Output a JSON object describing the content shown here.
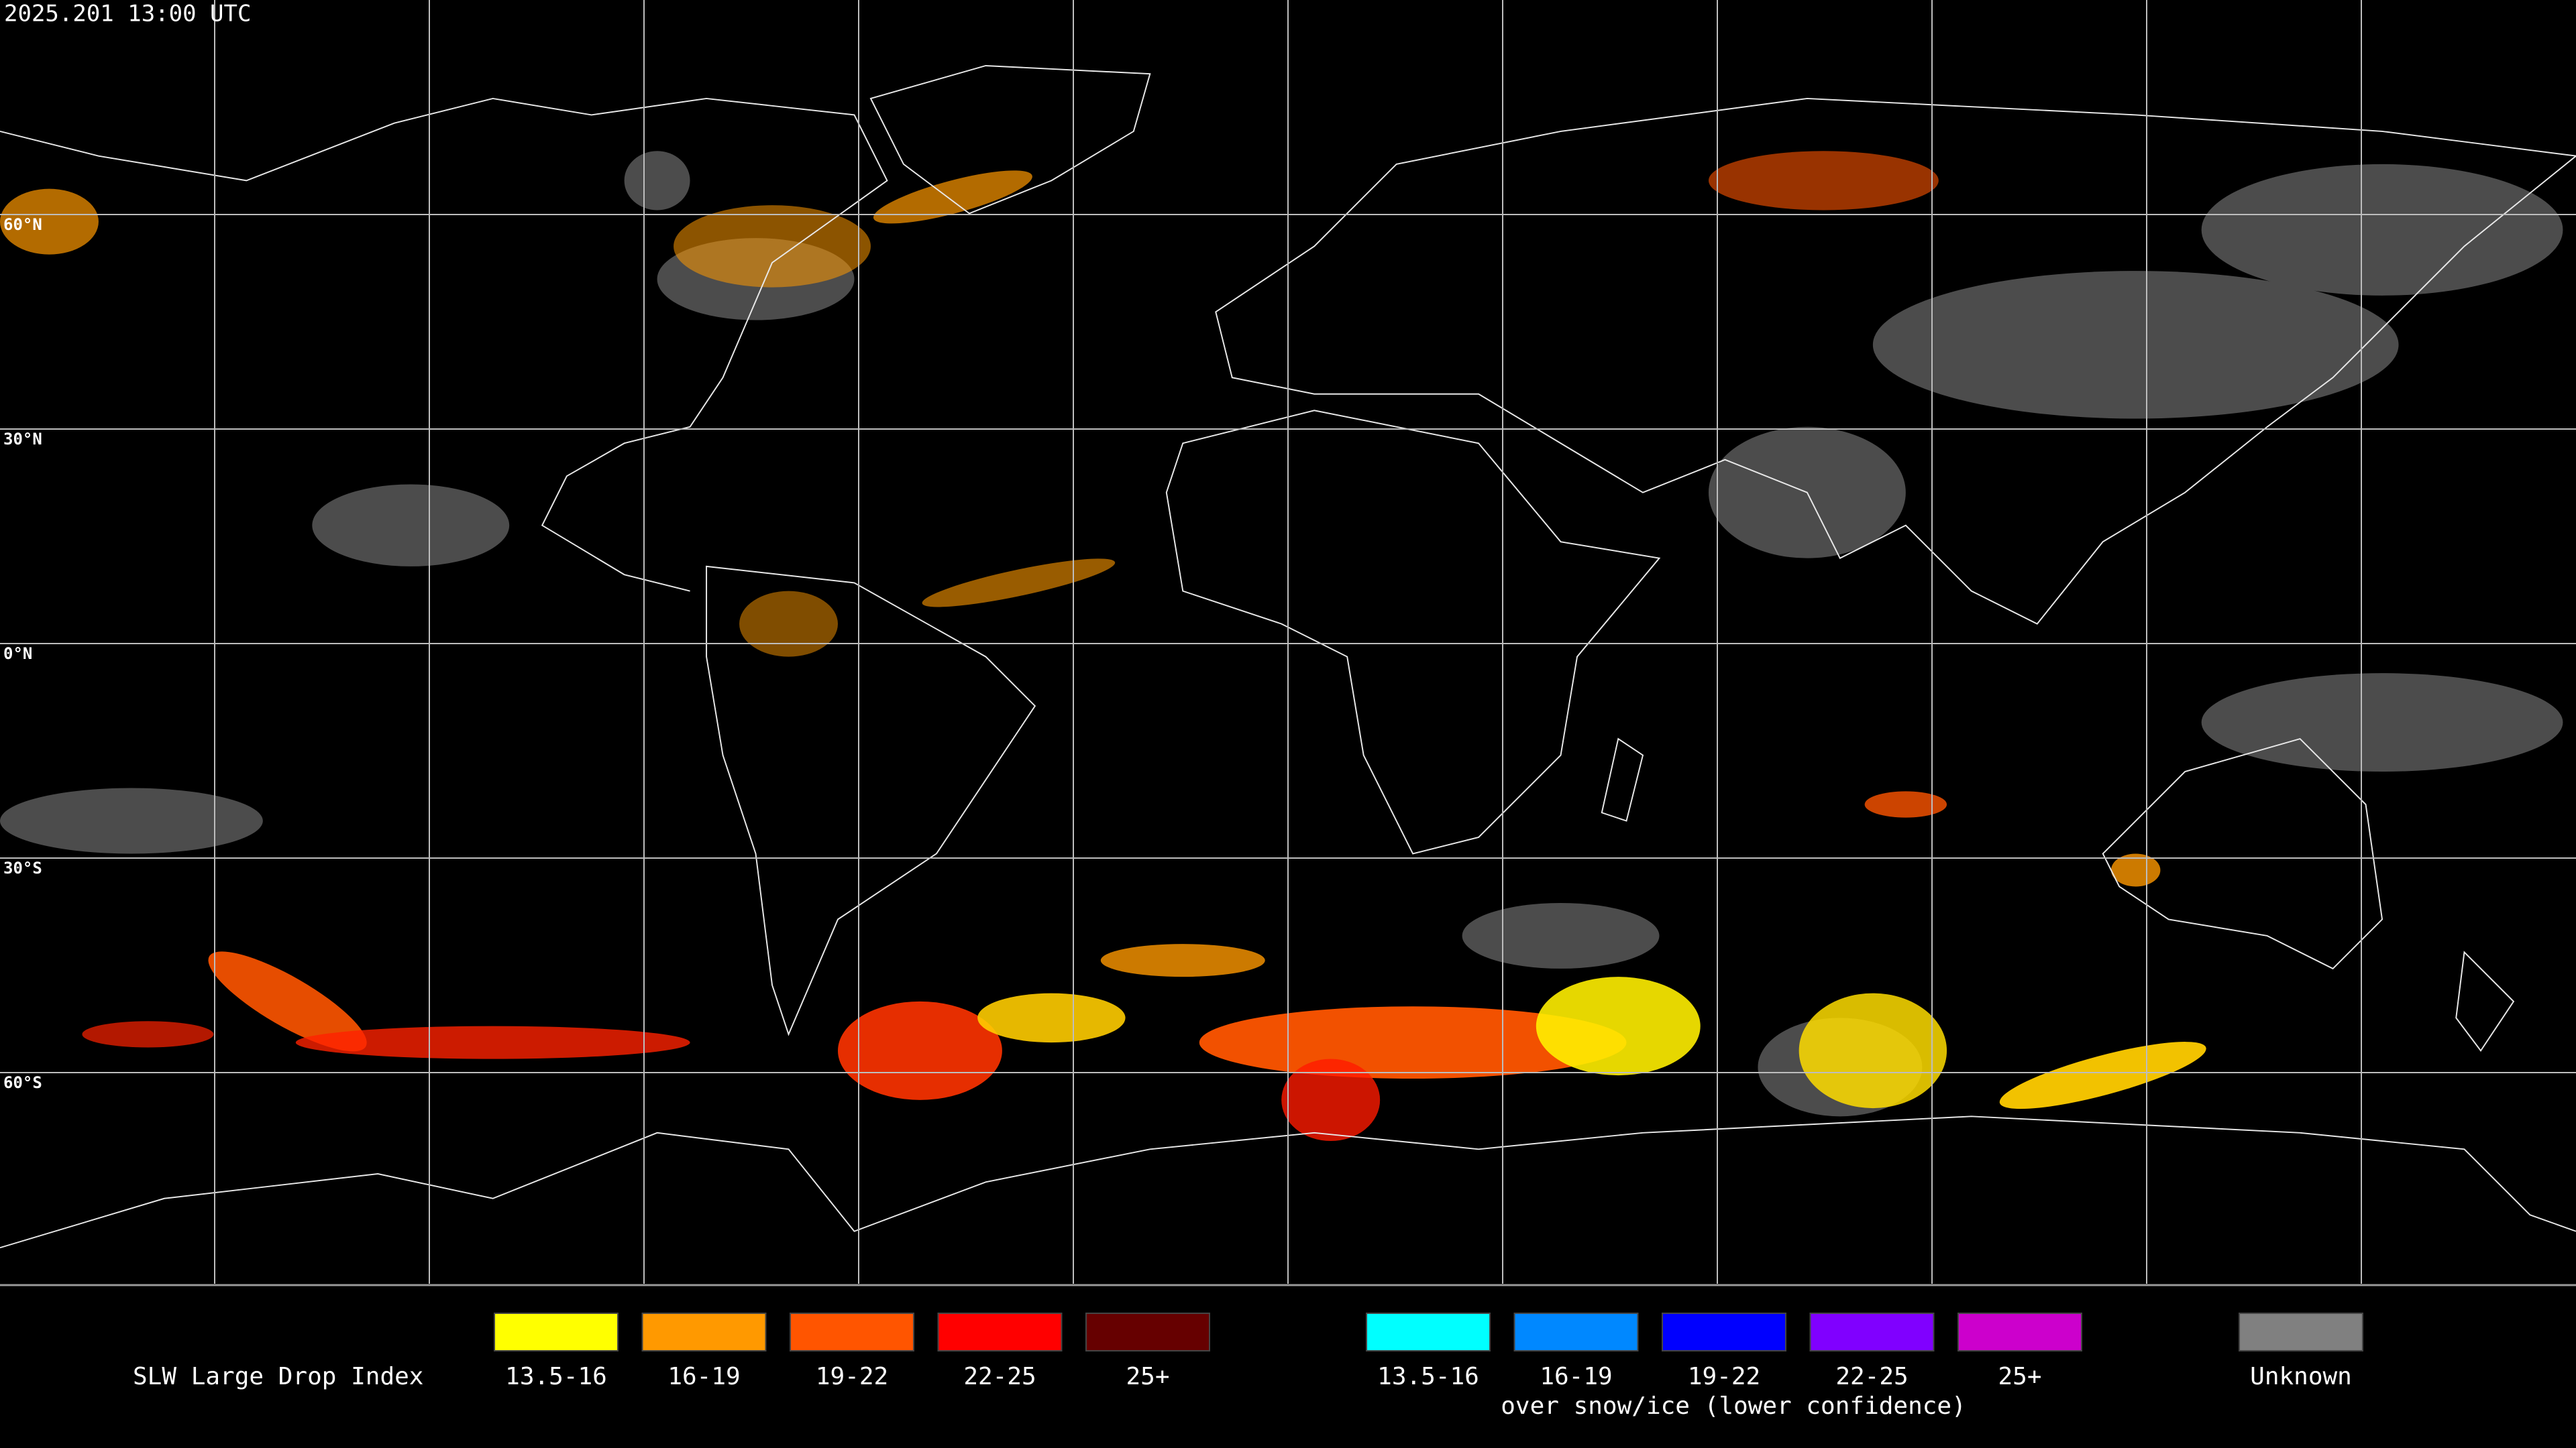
{
  "header": {
    "timestamp": "2025.201 13:00 UTC"
  },
  "map": {
    "lat_labels": [
      "60°N",
      "30°N",
      "0°N",
      "30°S",
      "60°S"
    ]
  },
  "legend": {
    "title": "SLW Large Drop Index",
    "liquid": [
      {
        "label": "13.5-16",
        "color": "#ffff00"
      },
      {
        "label": "16-19",
        "color": "#ff9900"
      },
      {
        "label": "19-22",
        "color": "#ff5500"
      },
      {
        "label": "22-25",
        "color": "#ff0000"
      },
      {
        "label": "25+",
        "color": "#660000"
      }
    ],
    "snow_ice": [
      {
        "label": "13.5-16",
        "color": "#00ffff"
      },
      {
        "label": "16-19",
        "color": "#0088ff"
      },
      {
        "label": "19-22",
        "color": "#0000ff"
      },
      {
        "label": "22-25",
        "color": "#8000ff"
      },
      {
        "label": "25+",
        "color": "#cc00cc"
      }
    ],
    "snow_ice_caption": "over snow/ice (lower confidence)",
    "unknown": {
      "label": "Unknown",
      "color": "#808080"
    }
  }
}
